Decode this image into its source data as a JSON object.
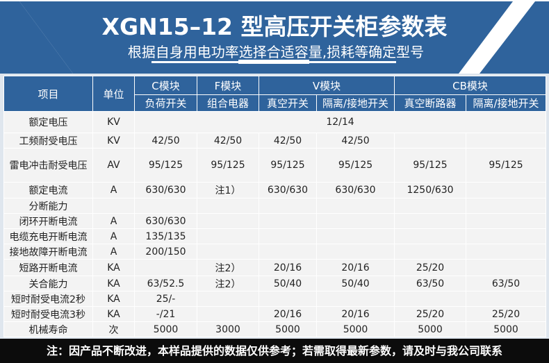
{
  "header": {
    "title": "XGN15–12 型高压开关柜参数表",
    "subtitle": "根据自身用电功率选择合适容量,损耗等确定型号"
  },
  "colors": {
    "banner": "#2f639c",
    "table_bg": "#f3f3f3",
    "footer": "#0c0c0c"
  },
  "table": {
    "head": {
      "item": "项目",
      "unit": "单位",
      "groups": [
        "C模块",
        "F模块",
        "V模块",
        "CB模块"
      ],
      "subs": [
        "负荷开关",
        "组合电器",
        "真空开关",
        "隔离/接地开关",
        "真空断路器",
        "隔离/接地开关"
      ]
    },
    "rated_voltage": {
      "label": "额定电压",
      "unit": "KV",
      "value": "12/14"
    },
    "rows": [
      {
        "label": "工频耐受电压",
        "unit": "KV",
        "cells": [
          "42/50",
          "42/50",
          "42/50",
          "42/50",
          "",
          ""
        ]
      },
      {
        "label": "雷电冲击耐受电压",
        "unit": "AV",
        "cells": [
          "95/125",
          "95/125",
          "95/125",
          "95/125",
          "95/125",
          "95/125"
        ]
      },
      {
        "label": "额定电流",
        "unit": "A",
        "cells": [
          "630/630",
          "注1）",
          "630/630",
          "630/630",
          "1250/630",
          ""
        ]
      },
      {
        "label": "分断能力",
        "unit": "",
        "cells": [
          "",
          "",
          "",
          "",
          "",
          ""
        ]
      },
      {
        "label": "闭环开断电流",
        "unit": "A",
        "cells": [
          "630/630",
          "",
          "",
          "",
          "",
          ""
        ]
      },
      {
        "label": "电缆充电开断电流",
        "unit": "A",
        "cells": [
          "135/135",
          "",
          "",
          "",
          "",
          ""
        ]
      },
      {
        "label": "接地故障开断电流",
        "unit": "A",
        "cells": [
          "200/150",
          "",
          "",
          "",
          "",
          ""
        ]
      },
      {
        "label": "短路开断电流",
        "unit": "KA",
        "cells": [
          "",
          "注2）",
          "20/16",
          "20/16",
          "25/20",
          ""
        ]
      },
      {
        "label": "关合能力",
        "unit": "KA",
        "cells": [
          "63/52.5",
          "注2）",
          "50/40",
          "50/40",
          "63/50",
          "63/50"
        ]
      },
      {
        "label": "短时耐受电流2秒",
        "unit": "KA",
        "cells": [
          "25/-",
          "",
          "",
          "",
          "",
          ""
        ]
      },
      {
        "label": "短时耐受电流3秒",
        "unit": "KA",
        "cells": [
          "-/21",
          "",
          "20/16",
          "20/16",
          "25/20",
          "25/20"
        ]
      },
      {
        "label": "机械寿命",
        "unit": "次",
        "cells": [
          "5000",
          "3000",
          "5000",
          "5000",
          "5000",
          "5000"
        ]
      }
    ]
  },
  "footer": {
    "note": "注：因产品不断改进，本样品提供的数据仅供参考；若需取得最新参数，请及时与我公司联系"
  }
}
